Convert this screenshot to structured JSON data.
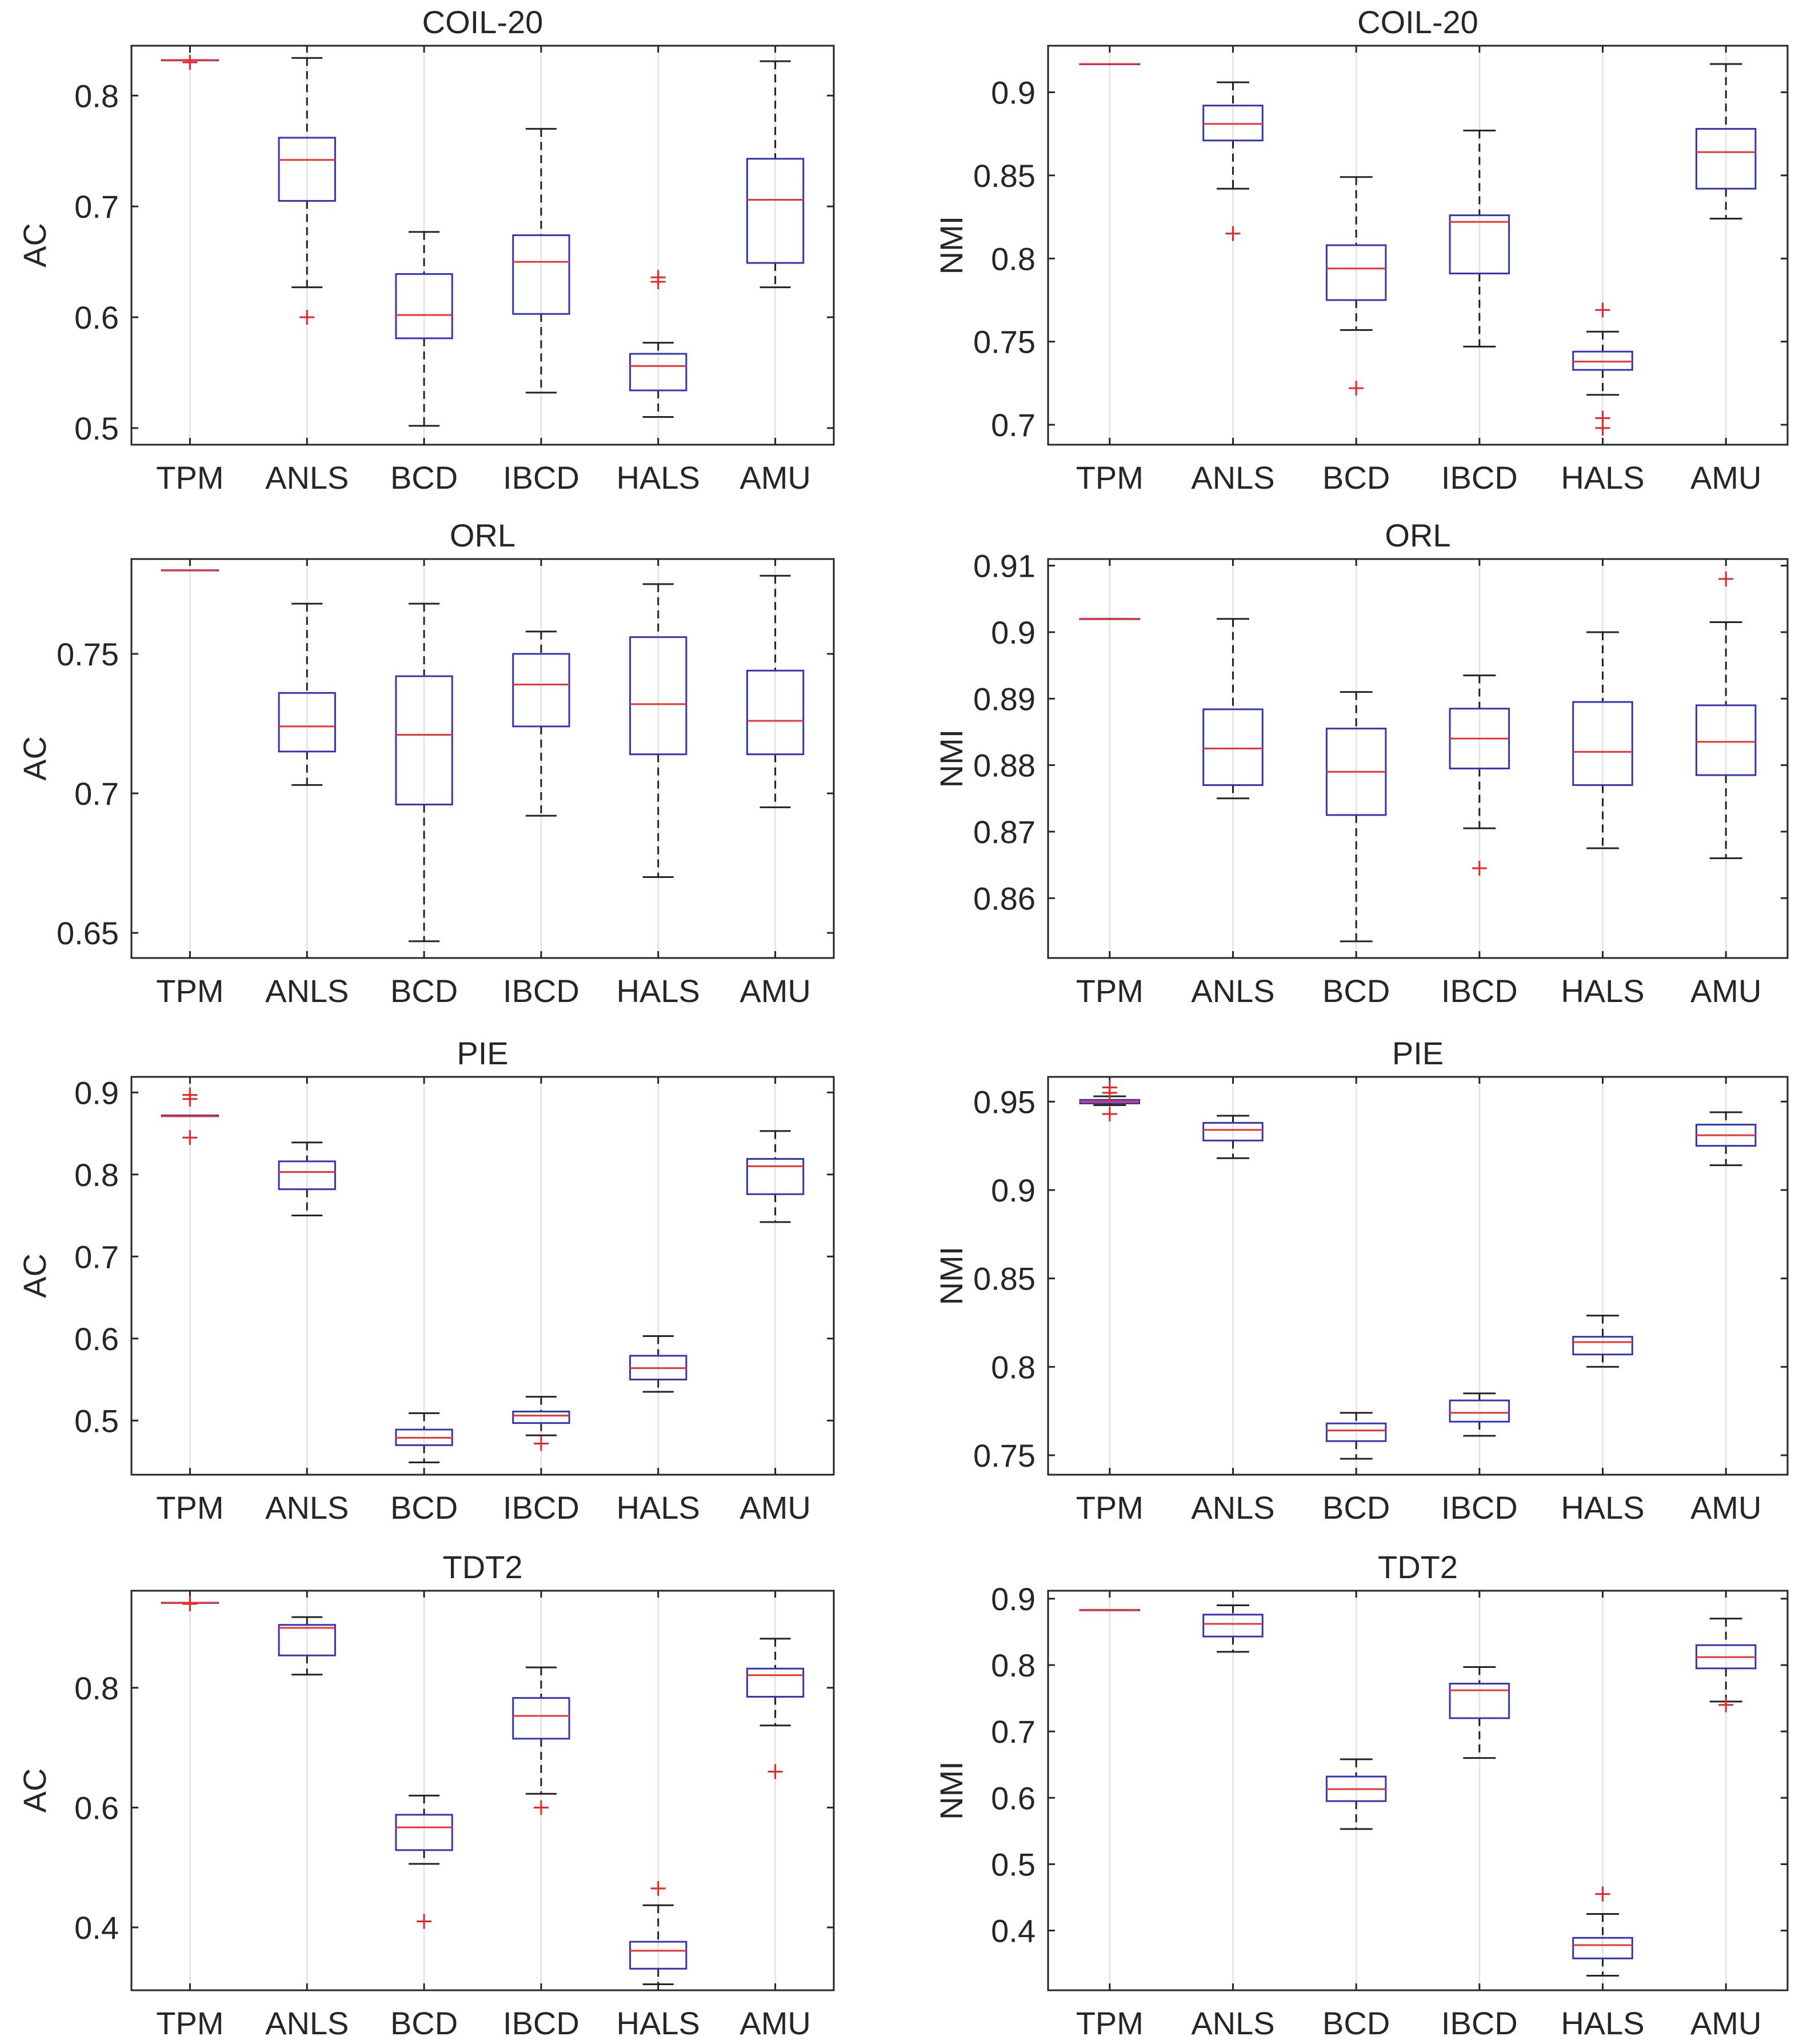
{
  "chart_data": [
    {
      "type": "box",
      "title": "COIL-20",
      "ylabel": "AC",
      "ylim": [
        0.485,
        0.845
      ],
      "yticks": [
        "0.5",
        "0.6",
        "0.7",
        "0.8"
      ],
      "categories": [
        "TPM",
        "ANLS",
        "BCD",
        "IBCD",
        "HALS",
        "AMU"
      ],
      "boxes": [
        {
          "min": 0.832,
          "q1": 0.832,
          "median": 0.832,
          "q3": 0.832,
          "max": 0.832,
          "outliers": [
            0.83
          ]
        },
        {
          "min": 0.627,
          "q1": 0.705,
          "median": 0.742,
          "q3": 0.762,
          "max": 0.834,
          "outliers": [
            0.6
          ]
        },
        {
          "min": 0.502,
          "q1": 0.581,
          "median": 0.602,
          "q3": 0.639,
          "max": 0.677,
          "outliers": []
        },
        {
          "min": 0.532,
          "q1": 0.603,
          "median": 0.65,
          "q3": 0.674,
          "max": 0.77,
          "outliers": []
        },
        {
          "min": 0.51,
          "q1": 0.534,
          "median": 0.556,
          "q3": 0.567,
          "max": 0.577,
          "outliers": [
            0.632,
            0.636
          ]
        },
        {
          "min": 0.627,
          "q1": 0.649,
          "median": 0.706,
          "q3": 0.743,
          "max": 0.831,
          "outliers": []
        }
      ]
    },
    {
      "type": "box",
      "title": "COIL-20",
      "ylabel": "NMI",
      "ylim": [
        0.688,
        0.928
      ],
      "yticks": [
        "0.7",
        "0.75",
        "0.8",
        "0.85",
        "0.9"
      ],
      "categories": [
        "TPM",
        "ANLS",
        "BCD",
        "IBCD",
        "HALS",
        "AMU"
      ],
      "boxes": [
        {
          "min": 0.917,
          "q1": 0.917,
          "median": 0.917,
          "q3": 0.917,
          "max": 0.917,
          "outliers": []
        },
        {
          "min": 0.842,
          "q1": 0.871,
          "median": 0.881,
          "q3": 0.892,
          "max": 0.906,
          "outliers": [
            0.815
          ]
        },
        {
          "min": 0.757,
          "q1": 0.775,
          "median": 0.794,
          "q3": 0.808,
          "max": 0.849,
          "outliers": [
            0.722
          ]
        },
        {
          "min": 0.747,
          "q1": 0.791,
          "median": 0.822,
          "q3": 0.826,
          "max": 0.877,
          "outliers": []
        },
        {
          "min": 0.718,
          "q1": 0.733,
          "median": 0.738,
          "q3": 0.744,
          "max": 0.756,
          "outliers": [
            0.698,
            0.704,
            0.769
          ]
        },
        {
          "min": 0.824,
          "q1": 0.842,
          "median": 0.864,
          "q3": 0.878,
          "max": 0.917,
          "outliers": []
        }
      ]
    },
    {
      "type": "box",
      "title": "ORL",
      "ylabel": "AC",
      "ylim": [
        0.641,
        0.784
      ],
      "yticks": [
        "0.65",
        "0.7",
        "0.75"
      ],
      "categories": [
        "TPM",
        "ANLS",
        "BCD",
        "IBCD",
        "HALS",
        "AMU"
      ],
      "boxes": [
        {
          "min": 0.78,
          "q1": 0.78,
          "median": 0.78,
          "q3": 0.78,
          "max": 0.78,
          "outliers": []
        },
        {
          "min": 0.703,
          "q1": 0.715,
          "median": 0.724,
          "q3": 0.736,
          "max": 0.768,
          "outliers": []
        },
        {
          "min": 0.647,
          "q1": 0.696,
          "median": 0.721,
          "q3": 0.742,
          "max": 0.768,
          "outliers": []
        },
        {
          "min": 0.692,
          "q1": 0.724,
          "median": 0.739,
          "q3": 0.75,
          "max": 0.758,
          "outliers": []
        },
        {
          "min": 0.67,
          "q1": 0.714,
          "median": 0.732,
          "q3": 0.756,
          "max": 0.775,
          "outliers": []
        },
        {
          "min": 0.695,
          "q1": 0.714,
          "median": 0.726,
          "q3": 0.744,
          "max": 0.778,
          "outliers": []
        }
      ]
    },
    {
      "type": "box",
      "title": "ORL",
      "ylabel": "NMI",
      "ylim": [
        0.851,
        0.911
      ],
      "yticks": [
        "0.86",
        "0.87",
        "0.88",
        "0.89",
        "0.9",
        "0.91"
      ],
      "categories": [
        "TPM",
        "ANLS",
        "BCD",
        "IBCD",
        "HALS",
        "AMU"
      ],
      "boxes": [
        {
          "min": 0.902,
          "q1": 0.902,
          "median": 0.902,
          "q3": 0.902,
          "max": 0.902,
          "outliers": []
        },
        {
          "min": 0.875,
          "q1": 0.877,
          "median": 0.8825,
          "q3": 0.8884,
          "max": 0.902,
          "outliers": []
        },
        {
          "min": 0.8535,
          "q1": 0.8725,
          "median": 0.879,
          "q3": 0.8855,
          "max": 0.891,
          "outliers": []
        },
        {
          "min": 0.8705,
          "q1": 0.8795,
          "median": 0.884,
          "q3": 0.8885,
          "max": 0.8935,
          "outliers": [
            0.8645
          ]
        },
        {
          "min": 0.8675,
          "q1": 0.877,
          "median": 0.882,
          "q3": 0.8895,
          "max": 0.9,
          "outliers": []
        },
        {
          "min": 0.866,
          "q1": 0.8785,
          "median": 0.8835,
          "q3": 0.889,
          "max": 0.9015,
          "outliers": [
            0.908
          ]
        }
      ]
    },
    {
      "type": "box",
      "title": "PIE",
      "ylabel": "AC",
      "ylim": [
        0.434,
        0.919
      ],
      "yticks": [
        "0.5",
        "0.6",
        "0.7",
        "0.8",
        "0.9"
      ],
      "categories": [
        "TPM",
        "ANLS",
        "BCD",
        "IBCD",
        "HALS",
        "AMU"
      ],
      "boxes": [
        {
          "min": 0.871,
          "q1": 0.871,
          "median": 0.871,
          "q3": 0.872,
          "max": 0.872,
          "outliers": [
            0.845,
            0.892,
            0.897
          ]
        },
        {
          "min": 0.75,
          "q1": 0.782,
          "median": 0.803,
          "q3": 0.816,
          "max": 0.839,
          "outliers": []
        },
        {
          "min": 0.449,
          "q1": 0.47,
          "median": 0.479,
          "q3": 0.489,
          "max": 0.509,
          "outliers": []
        },
        {
          "min": 0.482,
          "q1": 0.497,
          "median": 0.506,
          "q3": 0.511,
          "max": 0.529,
          "outliers": [
            0.472
          ]
        },
        {
          "min": 0.535,
          "q1": 0.55,
          "median": 0.564,
          "q3": 0.579,
          "max": 0.603,
          "outliers": []
        },
        {
          "min": 0.742,
          "q1": 0.776,
          "median": 0.81,
          "q3": 0.819,
          "max": 0.853,
          "outliers": []
        }
      ]
    },
    {
      "type": "box",
      "title": "PIE",
      "ylabel": "NMI",
      "ylim": [
        0.739,
        0.964
      ],
      "yticks": [
        "0.75",
        "0.8",
        "0.85",
        "0.9",
        "0.95"
      ],
      "categories": [
        "TPM",
        "ANLS",
        "BCD",
        "IBCD",
        "HALS",
        "AMU"
      ],
      "boxes": [
        {
          "min": 0.948,
          "q1": 0.949,
          "median": 0.95,
          "q3": 0.951,
          "max": 0.953,
          "outliers": [
            0.943,
            0.955,
            0.958
          ]
        },
        {
          "min": 0.918,
          "q1": 0.928,
          "median": 0.934,
          "q3": 0.938,
          "max": 0.942,
          "outliers": []
        },
        {
          "min": 0.748,
          "q1": 0.758,
          "median": 0.764,
          "q3": 0.768,
          "max": 0.774,
          "outliers": []
        },
        {
          "min": 0.761,
          "q1": 0.769,
          "median": 0.774,
          "q3": 0.781,
          "max": 0.785,
          "outliers": []
        },
        {
          "min": 0.8,
          "q1": 0.807,
          "median": 0.814,
          "q3": 0.817,
          "max": 0.829,
          "outliers": []
        },
        {
          "min": 0.914,
          "q1": 0.925,
          "median": 0.931,
          "q3": 0.937,
          "max": 0.944,
          "outliers": []
        }
      ]
    },
    {
      "type": "box",
      "title": "TDT2",
      "ylabel": "AC",
      "ylim": [
        0.295,
        0.962
      ],
      "yticks": [
        "0.4",
        "0.6",
        "0.8"
      ],
      "categories": [
        "TPM",
        "ANLS",
        "BCD",
        "IBCD",
        "HALS",
        "AMU"
      ],
      "boxes": [
        {
          "min": 0.942,
          "q1": 0.942,
          "median": 0.942,
          "q3": 0.942,
          "max": 0.942,
          "outliers": [
            0.94
          ]
        },
        {
          "min": 0.822,
          "q1": 0.854,
          "median": 0.9,
          "q3": 0.905,
          "max": 0.918,
          "outliers": []
        },
        {
          "min": 0.506,
          "q1": 0.529,
          "median": 0.567,
          "q3": 0.588,
          "max": 0.62,
          "outliers": [
            0.41
          ]
        },
        {
          "min": 0.623,
          "q1": 0.715,
          "median": 0.753,
          "q3": 0.783,
          "max": 0.834,
          "outliers": [
            0.6
          ]
        },
        {
          "min": 0.305,
          "q1": 0.331,
          "median": 0.361,
          "q3": 0.376,
          "max": 0.437,
          "outliers": [
            0.465
          ]
        },
        {
          "min": 0.737,
          "q1": 0.785,
          "median": 0.821,
          "q3": 0.832,
          "max": 0.882,
          "outliers": [
            0.66
          ]
        }
      ]
    },
    {
      "type": "box",
      "title": "TDT2",
      "ylabel": "NMI",
      "ylim": [
        0.31,
        0.912
      ],
      "yticks": [
        "0.4",
        "0.5",
        "0.6",
        "0.7",
        "0.8",
        "0.9"
      ],
      "categories": [
        "TPM",
        "ANLS",
        "BCD",
        "IBCD",
        "HALS",
        "AMU"
      ],
      "boxes": [
        {
          "min": 0.883,
          "q1": 0.883,
          "median": 0.883,
          "q3": 0.883,
          "max": 0.883,
          "outliers": []
        },
        {
          "min": 0.82,
          "q1": 0.843,
          "median": 0.862,
          "q3": 0.876,
          "max": 0.89,
          "outliers": []
        },
        {
          "min": 0.553,
          "q1": 0.595,
          "median": 0.613,
          "q3": 0.632,
          "max": 0.658,
          "outliers": []
        },
        {
          "min": 0.66,
          "q1": 0.72,
          "median": 0.762,
          "q3": 0.772,
          "max": 0.797,
          "outliers": []
        },
        {
          "min": 0.332,
          "q1": 0.358,
          "median": 0.378,
          "q3": 0.389,
          "max": 0.425,
          "outliers": [
            0.455
          ]
        },
        {
          "min": 0.745,
          "q1": 0.795,
          "median": 0.812,
          "q3": 0.83,
          "max": 0.87,
          "outliers": [
            0.74
          ]
        }
      ]
    }
  ],
  "colors": {
    "box": "#3333bb",
    "median": "#ee3333",
    "whisker": "#222222",
    "outlier": "#ee2222",
    "grid": "#e6e6e6",
    "axis": "#262626"
  }
}
